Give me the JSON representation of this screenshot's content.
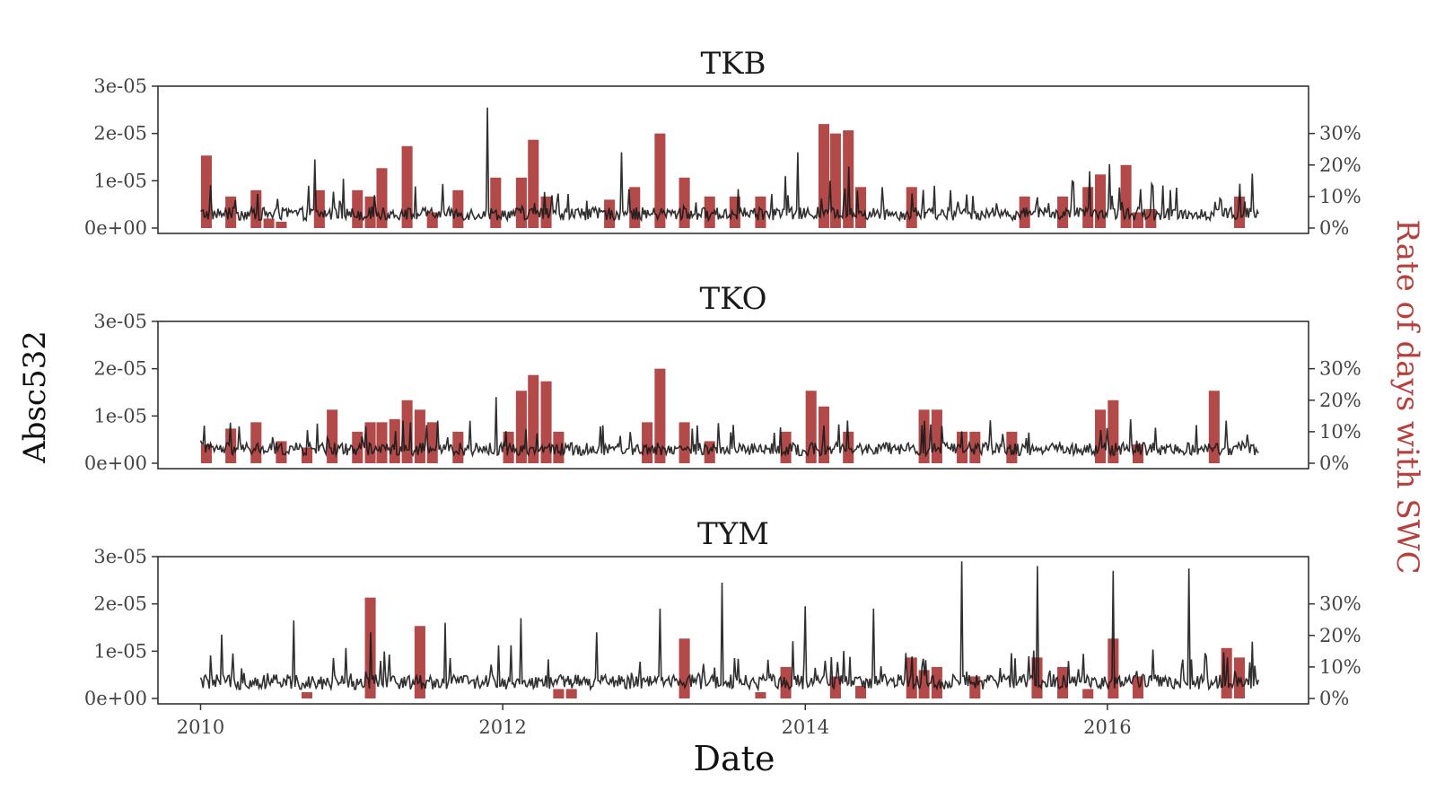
{
  "chart_data": {
    "type": "bar+line",
    "xlabel": "Date",
    "ylabel": "Absc532",
    "y2label": "Rate of days with SWC",
    "xlim": [
      "2009-09-20",
      "2017-05-01"
    ],
    "x_ticks": [
      {
        "date": "2010-01-01",
        "label": "2010"
      },
      {
        "date": "2012-01-01",
        "label": "2012"
      },
      {
        "date": "2014-01-01",
        "label": "2014"
      },
      {
        "date": "2016-01-01",
        "label": "2016"
      }
    ],
    "ylim": [
      0,
      3e-05
    ],
    "y_ticks": [
      {
        "value": 0,
        "label": "0e+00"
      },
      {
        "value": 1e-05,
        "label": "1e-05"
      },
      {
        "value": 2e-05,
        "label": "2e-05"
      },
      {
        "value": 3e-05,
        "label": "3e-05"
      }
    ],
    "y2lim": [
      -0.01,
      0.45
    ],
    "y2_ticks": [
      {
        "value": 0,
        "label": "0%"
      },
      {
        "value": 0.1,
        "label": "10%"
      },
      {
        "value": 0.2,
        "label": "20%"
      },
      {
        "value": 0.3,
        "label": "30%"
      }
    ],
    "colors": {
      "bars": "#a52a2a",
      "line": "#1a1a1a",
      "y2_title": "#b5403c"
    },
    "line_series_date_range": [
      "2010-01-01",
      "2016-12-31"
    ],
    "panels": [
      {
        "title": "TKB",
        "line_baseline": 3e-06,
        "line_spikes": [
          {
            "date": "2010-10-05",
            "value": 1.45e-05
          },
          {
            "date": "2011-11-25",
            "value": 2.55e-05
          },
          {
            "date": "2012-10-15",
            "value": 1.6e-05
          },
          {
            "date": "2013-11-15",
            "value": 1.1e-05
          },
          {
            "date": "2013-12-15",
            "value": 1.6e-05
          },
          {
            "date": "2014-03-01",
            "value": 1e-05
          },
          {
            "date": "2014-04-15",
            "value": 1.3e-05
          },
          {
            "date": "2015-11-20",
            "value": 1.2e-05
          },
          {
            "date": "2016-01-05",
            "value": 1.35e-05
          },
          {
            "date": "2016-12-15",
            "value": 1.15e-05
          }
        ],
        "bars": [
          {
            "date": "2010-01-15",
            "rate": 0.23
          },
          {
            "date": "2010-03-15",
            "rate": 0.1
          },
          {
            "date": "2010-05-15",
            "rate": 0.12
          },
          {
            "date": "2010-06-15",
            "rate": 0.03
          },
          {
            "date": "2010-07-15",
            "rate": 0.02
          },
          {
            "date": "2010-10-15",
            "rate": 0.12
          },
          {
            "date": "2011-01-15",
            "rate": 0.12
          },
          {
            "date": "2011-02-15",
            "rate": 0.1
          },
          {
            "date": "2011-03-15",
            "rate": 0.19
          },
          {
            "date": "2011-05-15",
            "rate": 0.26
          },
          {
            "date": "2011-07-15",
            "rate": 0.05
          },
          {
            "date": "2011-09-15",
            "rate": 0.12
          },
          {
            "date": "2011-12-15",
            "rate": 0.16
          },
          {
            "date": "2012-02-15",
            "rate": 0.16
          },
          {
            "date": "2012-03-15",
            "rate": 0.28
          },
          {
            "date": "2012-04-15",
            "rate": 0.1
          },
          {
            "date": "2012-09-15",
            "rate": 0.09
          },
          {
            "date": "2012-11-15",
            "rate": 0.13
          },
          {
            "date": "2013-01-15",
            "rate": 0.3
          },
          {
            "date": "2013-03-15",
            "rate": 0.16
          },
          {
            "date": "2013-05-15",
            "rate": 0.1
          },
          {
            "date": "2013-07-15",
            "rate": 0.1
          },
          {
            "date": "2013-09-15",
            "rate": 0.1
          },
          {
            "date": "2014-02-15",
            "rate": 0.33
          },
          {
            "date": "2014-03-15",
            "rate": 0.3
          },
          {
            "date": "2014-04-15",
            "rate": 0.31
          },
          {
            "date": "2014-05-15",
            "rate": 0.13
          },
          {
            "date": "2014-09-15",
            "rate": 0.13
          },
          {
            "date": "2015-06-15",
            "rate": 0.1
          },
          {
            "date": "2015-09-15",
            "rate": 0.1
          },
          {
            "date": "2015-11-15",
            "rate": 0.13
          },
          {
            "date": "2015-12-15",
            "rate": 0.17
          },
          {
            "date": "2016-02-15",
            "rate": 0.2
          },
          {
            "date": "2016-03-15",
            "rate": 0.05
          },
          {
            "date": "2016-04-15",
            "rate": 0.06
          },
          {
            "date": "2016-11-15",
            "rate": 0.1
          }
        ]
      },
      {
        "title": "TKO",
        "line_baseline": 3e-06,
        "line_spikes": [
          {
            "date": "2010-09-15",
            "value": 7e-06
          },
          {
            "date": "2011-10-15",
            "value": 9e-06
          },
          {
            "date": "2011-12-15",
            "value": 1.4e-05
          },
          {
            "date": "2013-04-15",
            "value": 8e-06
          },
          {
            "date": "2014-02-15",
            "value": 8e-06
          },
          {
            "date": "2014-10-15",
            "value": 9e-06
          },
          {
            "date": "2015-12-15",
            "value": 7e-06
          },
          {
            "date": "2016-10-15",
            "value": 9e-06
          }
        ],
        "bars": [
          {
            "date": "2010-01-15",
            "rate": 0.06
          },
          {
            "date": "2010-03-15",
            "rate": 0.11
          },
          {
            "date": "2010-05-15",
            "rate": 0.13
          },
          {
            "date": "2010-07-15",
            "rate": 0.07
          },
          {
            "date": "2010-09-15",
            "rate": 0.05
          },
          {
            "date": "2010-11-15",
            "rate": 0.17
          },
          {
            "date": "2011-01-15",
            "rate": 0.1
          },
          {
            "date": "2011-02-15",
            "rate": 0.13
          },
          {
            "date": "2011-03-15",
            "rate": 0.13
          },
          {
            "date": "2011-04-15",
            "rate": 0.14
          },
          {
            "date": "2011-05-15",
            "rate": 0.2
          },
          {
            "date": "2011-06-15",
            "rate": 0.17
          },
          {
            "date": "2011-07-15",
            "rate": 0.13
          },
          {
            "date": "2011-09-15",
            "rate": 0.1
          },
          {
            "date": "2012-01-15",
            "rate": 0.1
          },
          {
            "date": "2012-02-15",
            "rate": 0.23
          },
          {
            "date": "2012-03-15",
            "rate": 0.28
          },
          {
            "date": "2012-04-15",
            "rate": 0.26
          },
          {
            "date": "2012-05-15",
            "rate": 0.1
          },
          {
            "date": "2012-12-15",
            "rate": 0.13
          },
          {
            "date": "2013-01-15",
            "rate": 0.3
          },
          {
            "date": "2013-03-15",
            "rate": 0.13
          },
          {
            "date": "2013-05-15",
            "rate": 0.07
          },
          {
            "date": "2013-11-15",
            "rate": 0.1
          },
          {
            "date": "2014-01-15",
            "rate": 0.23
          },
          {
            "date": "2014-02-15",
            "rate": 0.18
          },
          {
            "date": "2014-04-15",
            "rate": 0.1
          },
          {
            "date": "2014-10-15",
            "rate": 0.17
          },
          {
            "date": "2014-11-15",
            "rate": 0.17
          },
          {
            "date": "2015-01-15",
            "rate": 0.1
          },
          {
            "date": "2015-02-15",
            "rate": 0.1
          },
          {
            "date": "2015-05-15",
            "rate": 0.1
          },
          {
            "date": "2015-12-15",
            "rate": 0.17
          },
          {
            "date": "2016-01-15",
            "rate": 0.2
          },
          {
            "date": "2016-03-15",
            "rate": 0.06
          },
          {
            "date": "2016-09-15",
            "rate": 0.23
          }
        ]
      },
      {
        "title": "TYM",
        "line_baseline": 3.5e-06,
        "line_spikes": [
          {
            "date": "2010-02-20",
            "value": 1.35e-05
          },
          {
            "date": "2010-08-15",
            "value": 1.65e-05
          },
          {
            "date": "2011-02-15",
            "value": 1.4e-05
          },
          {
            "date": "2011-08-15",
            "value": 1.6e-05
          },
          {
            "date": "2012-02-15",
            "value": 1.7e-05
          },
          {
            "date": "2012-08-15",
            "value": 1.4e-05
          },
          {
            "date": "2013-01-15",
            "value": 1.9e-05
          },
          {
            "date": "2013-06-15",
            "value": 2.45e-05
          },
          {
            "date": "2014-01-01",
            "value": 1.95e-05
          },
          {
            "date": "2014-06-15",
            "value": 1.9e-05
          },
          {
            "date": "2015-01-15",
            "value": 2.9e-05
          },
          {
            "date": "2015-07-15",
            "value": 2.8e-05
          },
          {
            "date": "2016-01-15",
            "value": 2.7e-05
          },
          {
            "date": "2016-07-15",
            "value": 2.75e-05
          },
          {
            "date": "2016-12-15",
            "value": 1.2e-05
          }
        ],
        "bars": [
          {
            "date": "2010-09-15",
            "rate": 0.02
          },
          {
            "date": "2011-02-15",
            "rate": 0.32
          },
          {
            "date": "2011-06-15",
            "rate": 0.23
          },
          {
            "date": "2012-05-15",
            "rate": 0.03
          },
          {
            "date": "2012-06-15",
            "rate": 0.03
          },
          {
            "date": "2013-03-15",
            "rate": 0.19
          },
          {
            "date": "2013-09-15",
            "rate": 0.02
          },
          {
            "date": "2013-11-15",
            "rate": 0.1
          },
          {
            "date": "2014-03-15",
            "rate": 0.07
          },
          {
            "date": "2014-05-15",
            "rate": 0.04
          },
          {
            "date": "2014-09-15",
            "rate": 0.13
          },
          {
            "date": "2014-10-15",
            "rate": 0.09
          },
          {
            "date": "2014-11-15",
            "rate": 0.1
          },
          {
            "date": "2015-02-15",
            "rate": 0.07
          },
          {
            "date": "2015-07-15",
            "rate": 0.13
          },
          {
            "date": "2015-09-15",
            "rate": 0.1
          },
          {
            "date": "2015-11-15",
            "rate": 0.03
          },
          {
            "date": "2016-01-15",
            "rate": 0.19
          },
          {
            "date": "2016-03-15",
            "rate": 0.07
          },
          {
            "date": "2016-10-15",
            "rate": 0.16
          },
          {
            "date": "2016-11-15",
            "rate": 0.13
          }
        ]
      }
    ]
  }
}
